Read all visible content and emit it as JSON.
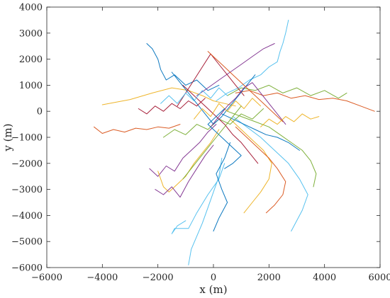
{
  "chart_data": {
    "type": "line",
    "title": "",
    "xlabel": "x (m)",
    "ylabel": "y (m)",
    "xlim": [
      -6000,
      6000
    ],
    "ylim": [
      -6000,
      4000
    ],
    "xticks": [
      -6000,
      -4000,
      -2000,
      0,
      2000,
      4000,
      6000
    ],
    "yticks": [
      -6000,
      -5000,
      -4000,
      -3000,
      -2000,
      -1000,
      0,
      1000,
      2000,
      3000,
      4000
    ],
    "xtick_labels": [
      "−6000",
      "−4000",
      "−2000",
      "0",
      "2000",
      "4000",
      "6000"
    ],
    "ytick_labels": [
      "−6000",
      "−5000",
      "−4000",
      "−3000",
      "−2000",
      "−1000",
      "0",
      "1000",
      "2000",
      "3000",
      "4000"
    ],
    "grid": false,
    "legend": "none",
    "colors": [
      "#0072BD",
      "#D95319",
      "#EDB120",
      "#7E2F8E",
      "#77AC30",
      "#4DBEEE",
      "#A2142F"
    ],
    "series": [
      {
        "color": "#EDB120",
        "x": [
          -4000,
          -3000,
          -2200,
          -1500,
          -900,
          -400,
          0,
          400,
          800
        ],
        "y": [
          250,
          450,
          700,
          900,
          800,
          600,
          400,
          300,
          200
        ]
      },
      {
        "color": "#D95319",
        "x": [
          -4300,
          -4000,
          -3600,
          -3200,
          -2800,
          -2400,
          -2000,
          -1600,
          -1200
        ],
        "y": [
          -600,
          -850,
          -700,
          -800,
          -650,
          -700,
          -600,
          -650,
          -500
        ]
      },
      {
        "color": "#0072BD",
        "x": [
          -2400,
          -2200,
          -2000,
          -1900,
          -1700,
          -1400,
          -1000,
          -600,
          -200,
          200
        ],
        "y": [
          2600,
          2400,
          2000,
          1600,
          1200,
          1400,
          1000,
          1200,
          800,
          1000
        ]
      },
      {
        "color": "#7E2F8E",
        "x": [
          -2300,
          -2000,
          -1700,
          -1400,
          -1100,
          -800,
          -500,
          -200,
          100
        ],
        "y": [
          -2200,
          -2500,
          -2100,
          -2300,
          -1800,
          -1500,
          -1200,
          -800,
          -500
        ]
      },
      {
        "color": "#EDB120",
        "x": [
          -2000,
          -1800,
          -1600,
          -1300,
          -1000,
          -700,
          -400,
          -100,
          200
        ],
        "y": [
          -2300,
          -2900,
          -3100,
          -2800,
          -2500,
          -2000,
          -1600,
          -1200,
          -700
        ]
      },
      {
        "color": "#4DBEEE",
        "x": [
          -1000,
          -1300,
          -1500,
          -1400,
          -900,
          -600,
          -200,
          200,
          400
        ],
        "y": [
          -4200,
          -4400,
          -4700,
          -4500,
          -4500,
          -3900,
          -3200,
          -2600,
          -2000
        ]
      },
      {
        "color": "#4DBEEE",
        "x": [
          -900,
          -800,
          -600,
          -400,
          -200,
          0,
          200,
          300
        ],
        "y": [
          -5900,
          -5300,
          -4800,
          -4300,
          -3700,
          -3100,
          -2500,
          -1800
        ]
      },
      {
        "color": "#0072BD",
        "x": [
          0,
          200,
          500,
          300,
          100,
          400,
          600
        ],
        "y": [
          -4600,
          -4100,
          -3500,
          -3000,
          -2400,
          -1800,
          -1200
        ]
      },
      {
        "color": "#EDB120",
        "x": [
          1100,
          1400,
          1700,
          2000,
          2100,
          1800,
          1400,
          1000,
          600
        ],
        "y": [
          -3900,
          -3500,
          -3100,
          -2600,
          -2000,
          -1500,
          -1100,
          -700,
          -300
        ]
      },
      {
        "color": "#D95319",
        "x": [
          1900,
          2200,
          2500,
          2600,
          2300,
          2000,
          1600,
          1200,
          800
        ],
        "y": [
          -3900,
          -3600,
          -3200,
          -2700,
          -2200,
          -1800,
          -1400,
          -1000,
          -600
        ]
      },
      {
        "color": "#77AC30",
        "x": [
          3600,
          3700,
          3500,
          3200,
          2800,
          2400,
          2000,
          1500,
          1000,
          500
        ],
        "y": [
          -2900,
          -2400,
          -1900,
          -1500,
          -1200,
          -900,
          -600,
          -400,
          -200,
          0
        ]
      },
      {
        "color": "#4DBEEE",
        "x": [
          2800,
          3200,
          3400,
          3100,
          2700,
          2200,
          1700,
          1200,
          700
        ],
        "y": [
          -4600,
          -3800,
          -3200,
          -2600,
          -2000,
          -1500,
          -1000,
          -600,
          -200
        ]
      },
      {
        "color": "#0072BD",
        "x": [
          3100,
          2700,
          2300,
          1900,
          1500,
          1100,
          700,
          300
        ],
        "y": [
          -1500,
          -1200,
          -1000,
          -900,
          -700,
          -500,
          -300,
          -100
        ]
      },
      {
        "color": "#D95319",
        "x": [
          5800,
          5300,
          4800,
          4300,
          3800,
          3300,
          2800,
          2300,
          1800,
          1300,
          800
        ],
        "y": [
          0,
          200,
          400,
          500,
          450,
          600,
          500,
          700,
          600,
          800,
          700
        ]
      },
      {
        "color": "#77AC30",
        "x": [
          4800,
          4500,
          4000,
          3500,
          3000,
          2500,
          2000,
          1500,
          1000,
          500
        ],
        "y": [
          700,
          500,
          800,
          600,
          900,
          700,
          1000,
          800,
          900,
          600
        ]
      },
      {
        "color": "#4DBEEE",
        "x": [
          2700,
          2600,
          2500,
          2400,
          2300,
          2000,
          1700,
          1300,
          900,
          500,
          100
        ],
        "y": [
          3500,
          3000,
          2600,
          2300,
          1900,
          1700,
          1400,
          1200,
          900,
          700,
          400
        ]
      },
      {
        "color": "#7E2F8E",
        "x": [
          2200,
          1800,
          1400,
          1000,
          600,
          200,
          -200,
          -600
        ],
        "y": [
          2600,
          2400,
          2100,
          1800,
          1500,
          1200,
          900,
          600
        ]
      },
      {
        "color": "#A2142F",
        "x": [
          -1300,
          -1000,
          -700,
          -400,
          -100,
          200,
          500,
          800,
          1100
        ],
        "y": [
          200,
          700,
          1200,
          1700,
          2200,
          1800,
          1400,
          1000,
          600
        ]
      },
      {
        "color": "#77AC30",
        "x": [
          -1800,
          -1400,
          -1000,
          -600,
          -200,
          200,
          600,
          1000,
          1400,
          1800
        ],
        "y": [
          -1000,
          -700,
          -900,
          -500,
          -700,
          -300,
          -500,
          -100,
          -300,
          100
        ]
      },
      {
        "color": "#0072BD",
        "x": [
          -1500,
          -1200,
          -900,
          -600,
          -300,
          0,
          300,
          600,
          900,
          1200,
          1500
        ],
        "y": [
          1500,
          1100,
          700,
          300,
          -100,
          -500,
          -200,
          200,
          600,
          1000,
          1400
        ]
      },
      {
        "color": "#A2142F",
        "x": [
          1600,
          1300,
          1000,
          700,
          400,
          100,
          -200,
          -500,
          -800,
          -1100
        ],
        "y": [
          -2000,
          -1600,
          -1200,
          -900,
          -500,
          -200,
          100,
          400,
          700,
          1000
        ]
      },
      {
        "color": "#EDB120",
        "x": [
          -700,
          -400,
          -100,
          200,
          500,
          800,
          1100,
          1400,
          1700
        ],
        "y": [
          -300,
          100,
          -200,
          300,
          0,
          400,
          100,
          500,
          200
        ]
      },
      {
        "color": "#7E2F8E",
        "x": [
          2600,
          2300,
          2000,
          1700,
          1400,
          1100,
          800,
          500,
          200,
          -100
        ],
        "y": [
          -500,
          -100,
          300,
          700,
          1100,
          900,
          500,
          200,
          -200,
          -600
        ]
      },
      {
        "color": "#D95319",
        "x": [
          -200,
          100,
          400,
          700,
          1000,
          1300,
          1600,
          1900,
          2200,
          2500
        ],
        "y": [
          2300,
          2000,
          1700,
          1400,
          1100,
          800,
          500,
          200,
          -100,
          -400
        ]
      },
      {
        "color": "#4DBEEE",
        "x": [
          -1900,
          -1600,
          -1300,
          -1000,
          -700,
          -400,
          -100,
          200,
          500
        ],
        "y": [
          300,
          600,
          300,
          700,
          400,
          800,
          500,
          900,
          600
        ]
      },
      {
        "color": "#0072BD",
        "x": [
          400,
          700,
          1000,
          700,
          400,
          100,
          -200,
          100,
          400
        ],
        "y": [
          -2200,
          -2000,
          -1700,
          -1400,
          -1100,
          -800,
          -500,
          -200,
          100
        ]
      },
      {
        "color": "#77AC30",
        "x": [
          -1100,
          -800,
          -500,
          -200,
          100,
          400,
          700,
          1000
        ],
        "y": [
          -2600,
          -2200,
          -1800,
          -1400,
          -1000,
          -600,
          -200,
          200
        ]
      },
      {
        "color": "#7E2F8E",
        "x": [
          -2100,
          -1800,
          -1500,
          -1200,
          -900,
          -600,
          -300,
          0
        ],
        "y": [
          -3000,
          -3200,
          -2900,
          -3300,
          -2700,
          -2200,
          -1700,
          -1300
        ]
      },
      {
        "color": "#A2142F",
        "x": [
          -2700,
          -2400,
          -2100,
          -1800,
          -1500,
          -1200,
          -900,
          -600,
          -300
        ],
        "y": [
          100,
          -100,
          200,
          0,
          300,
          100,
          400,
          200,
          500
        ]
      },
      {
        "color": "#EDB120",
        "x": [
          1700,
          2000,
          2300,
          2600,
          2900,
          3200,
          3500,
          3800
        ],
        "y": [
          -600,
          -300,
          -500,
          -200,
          -400,
          -100,
          -300,
          -200
        ]
      }
    ]
  }
}
